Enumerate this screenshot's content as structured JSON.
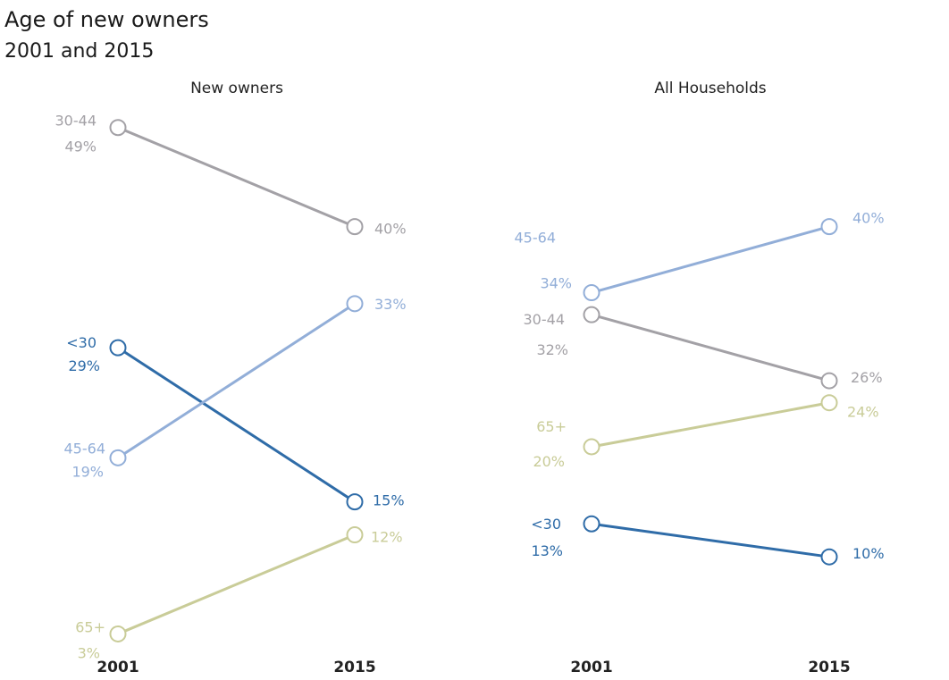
{
  "title": "Age of new owners",
  "subtitle": "2001 and 2015",
  "chart_data": [
    {
      "type": "line",
      "panel_title": "New owners",
      "x": [
        "2001",
        "2015"
      ],
      "ylim": [
        0,
        50
      ],
      "series": [
        {
          "name": "30-44",
          "values": [
            49,
            40
          ],
          "labels": [
            "49%",
            "40%"
          ],
          "color": "#a3a1a6"
        },
        {
          "name": "<30",
          "values": [
            29,
            15
          ],
          "labels": [
            "29%",
            "15%"
          ],
          "color": "#2f6ca8"
        },
        {
          "name": "45-64",
          "values": [
            19,
            33
          ],
          "labels": [
            "19%",
            "33%"
          ],
          "color": "#92aed8"
        },
        {
          "name": "65+",
          "values": [
            3,
            12
          ],
          "labels": [
            "3%",
            "12%"
          ],
          "color": "#c9cc98"
        }
      ]
    },
    {
      "type": "line",
      "panel_title": "All Households",
      "x": [
        "2001",
        "2015"
      ],
      "ylim": [
        0,
        50
      ],
      "series": [
        {
          "name": "45-64",
          "values": [
            34,
            40
          ],
          "labels": [
            "34%",
            "40%"
          ],
          "color": "#92aed8"
        },
        {
          "name": "30-44",
          "values": [
            32,
            26
          ],
          "labels": [
            "32%",
            "26%"
          ],
          "color": "#a3a1a6"
        },
        {
          "name": "65+",
          "values": [
            20,
            24
          ],
          "labels": [
            "20%",
            "24%"
          ],
          "color": "#c9cc98"
        },
        {
          "name": "<30",
          "values": [
            13,
            10
          ],
          "labels": [
            "13%",
            "10%"
          ],
          "color": "#2f6ca8"
        }
      ]
    }
  ]
}
